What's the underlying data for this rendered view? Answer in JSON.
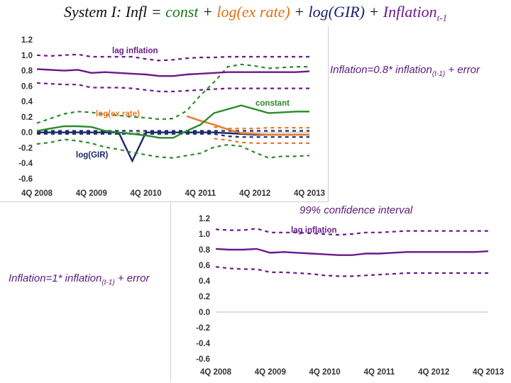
{
  "title": {
    "prefix": "System I: Infl = ",
    "term_const": "const",
    "plus1": " + ",
    "term_ex": "log(ex rate)",
    "plus2": " + ",
    "term_gir": "log(GIR)",
    "plus3": " + ",
    "term_infl": "Inflation",
    "term_infl_sub": "t-1"
  },
  "notes": {
    "top_right_main": "Inflation=0.8* inflation",
    "top_right_sub": "(t-1)",
    "top_right_tail": " + error",
    "ci_label": "99% confidence interval",
    "left_main": "Inflation=1* inflation",
    "left_sub": "(t-1)",
    "left_tail": " + error"
  },
  "colors": {
    "inflation": "#6a1a8a",
    "constant": "#2a8a2a",
    "exrate": "#e8782a",
    "gir": "#1a2a6a"
  },
  "chart_data": [
    {
      "type": "line",
      "title": "",
      "xlabel": "",
      "ylabel": "",
      "ylim": [
        -0.6,
        1.2
      ],
      "yticks": [
        "1.2",
        "1.0",
        "0.8",
        "0.6",
        "0.4",
        "0.2",
        "0.0",
        "-0.2",
        "-0.4",
        "-0.6"
      ],
      "xticks": [
        "4Q 2008",
        "4Q 2009",
        "4Q 2010",
        "4Q 2011",
        "4Q 2012",
        "4Q 2013"
      ],
      "x_quarters": 21,
      "grid": false,
      "series": [
        {
          "name": "lag inflation",
          "color": "#6a1a8a",
          "values": [
            0.82,
            0.81,
            0.8,
            0.81,
            0.77,
            0.78,
            0.77,
            0.76,
            0.75,
            0.73,
            0.73,
            0.75,
            0.76,
            0.77,
            0.78,
            0.78,
            0.78,
            0.78,
            0.78,
            0.78,
            0.79
          ],
          "upper": [
            1.0,
            0.99,
            1.0,
            1.01,
            0.98,
            0.98,
            0.98,
            0.98,
            0.95,
            0.93,
            0.94,
            0.96,
            0.97,
            0.97,
            0.98,
            0.98,
            0.98,
            0.98,
            0.98,
            0.98,
            0.98
          ],
          "lower": [
            0.64,
            0.63,
            0.62,
            0.62,
            0.58,
            0.58,
            0.58,
            0.57,
            0.55,
            0.53,
            0.53,
            0.54,
            0.55,
            0.56,
            0.57,
            0.57,
            0.57,
            0.57,
            0.57,
            0.57,
            0.57
          ]
        },
        {
          "name": "constant",
          "color": "#2a8a2a",
          "values": [
            0.02,
            0.05,
            0.08,
            0.08,
            0.07,
            0.02,
            0.0,
            -0.02,
            -0.04,
            -0.07,
            -0.07,
            0.02,
            0.1,
            0.25,
            0.3,
            0.35,
            0.3,
            0.25,
            0.26,
            0.27,
            0.27
          ],
          "upper": [
            0.12,
            0.18,
            0.24,
            0.27,
            0.26,
            0.23,
            0.22,
            0.2,
            0.19,
            0.17,
            0.18,
            0.28,
            0.48,
            0.65,
            0.85,
            0.88,
            0.86,
            0.83,
            0.84,
            0.85,
            0.85
          ],
          "lower": [
            -0.15,
            -0.13,
            -0.09,
            -0.11,
            -0.14,
            -0.19,
            -0.22,
            -0.26,
            -0.29,
            -0.32,
            -0.33,
            -0.3,
            -0.27,
            -0.19,
            -0.16,
            -0.18,
            -0.26,
            -0.33,
            -0.31,
            -0.31,
            -0.3
          ]
        },
        {
          "name": "log(ex rate)",
          "color": "#e8782a",
          "values": [
            null,
            null,
            null,
            null,
            null,
            null,
            null,
            null,
            null,
            null,
            null,
            0.21,
            0.15,
            0.1,
            0.04,
            -0.01,
            -0.02,
            -0.03,
            -0.03,
            -0.03,
            -0.03
          ],
          "upper": [
            null,
            null,
            null,
            null,
            null,
            null,
            null,
            null,
            null,
            null,
            null,
            null,
            null,
            0.07,
            0.05,
            0.05,
            0.05,
            0.06,
            0.06,
            0.06,
            0.06
          ],
          "lower": [
            null,
            null,
            null,
            null,
            null,
            null,
            null,
            null,
            null,
            null,
            null,
            null,
            null,
            -0.08,
            -0.1,
            -0.13,
            -0.14,
            -0.14,
            -0.14,
            -0.14,
            -0.14
          ]
        },
        {
          "name": "log(GIR)",
          "color": "#1a2a6a",
          "values": [
            0.0,
            0.0,
            0.0,
            0.0,
            0.0,
            0.0,
            0.0,
            -0.37,
            0.0,
            0.0,
            0.0,
            0.0,
            0.0,
            0.0,
            -0.01,
            -0.02,
            -0.03,
            -0.03,
            -0.03,
            -0.03,
            -0.03
          ],
          "upper": [
            0.02,
            0.02,
            0.02,
            0.02,
            0.02,
            0.02,
            0.02,
            0.02,
            0.02,
            0.02,
            0.02,
            0.02,
            0.02,
            0.02,
            0.02,
            0.02,
            0.02,
            0.02,
            0.02,
            0.02,
            0.02
          ],
          "lower": [
            -0.02,
            -0.02,
            -0.02,
            -0.02,
            -0.02,
            -0.02,
            -0.02,
            -0.02,
            -0.02,
            -0.02,
            -0.02,
            -0.02,
            -0.02,
            -0.02,
            -0.05,
            -0.06,
            -0.06,
            -0.06,
            -0.06,
            -0.06,
            -0.06
          ]
        }
      ]
    },
    {
      "type": "line",
      "title": "",
      "xlabel": "",
      "ylabel": "",
      "ylim": [
        -0.6,
        1.2
      ],
      "yticks": [
        "1.2",
        "1.0",
        "0.8",
        "0.6",
        "0.4",
        "0.2",
        "0.0",
        "-0.2",
        "-0.4",
        "-0.6"
      ],
      "xticks": [
        "4Q 2008",
        "4Q 2009",
        "4Q 2010",
        "4Q 2011",
        "4Q 2012",
        "4Q 2013"
      ],
      "x_quarters": 21,
      "grid": false,
      "series": [
        {
          "name": "lag inflation",
          "color": "#6a1a8a",
          "values": [
            0.81,
            0.8,
            0.8,
            0.81,
            0.76,
            0.77,
            0.76,
            0.75,
            0.74,
            0.73,
            0.73,
            0.75,
            0.75,
            0.76,
            0.77,
            0.77,
            0.77,
            0.77,
            0.77,
            0.77,
            0.78
          ],
          "upper": [
            1.06,
            1.05,
            1.05,
            1.07,
            1.02,
            1.02,
            1.02,
            1.01,
            1.0,
            0.99,
            1.0,
            1.02,
            1.02,
            1.03,
            1.04,
            1.04,
            1.04,
            1.04,
            1.04,
            1.04,
            1.04
          ],
          "lower": [
            0.58,
            0.56,
            0.55,
            0.55,
            0.51,
            0.51,
            0.5,
            0.49,
            0.47,
            0.46,
            0.46,
            0.47,
            0.48,
            0.49,
            0.5,
            0.5,
            0.5,
            0.5,
            0.5,
            0.5,
            0.5
          ]
        }
      ]
    }
  ]
}
